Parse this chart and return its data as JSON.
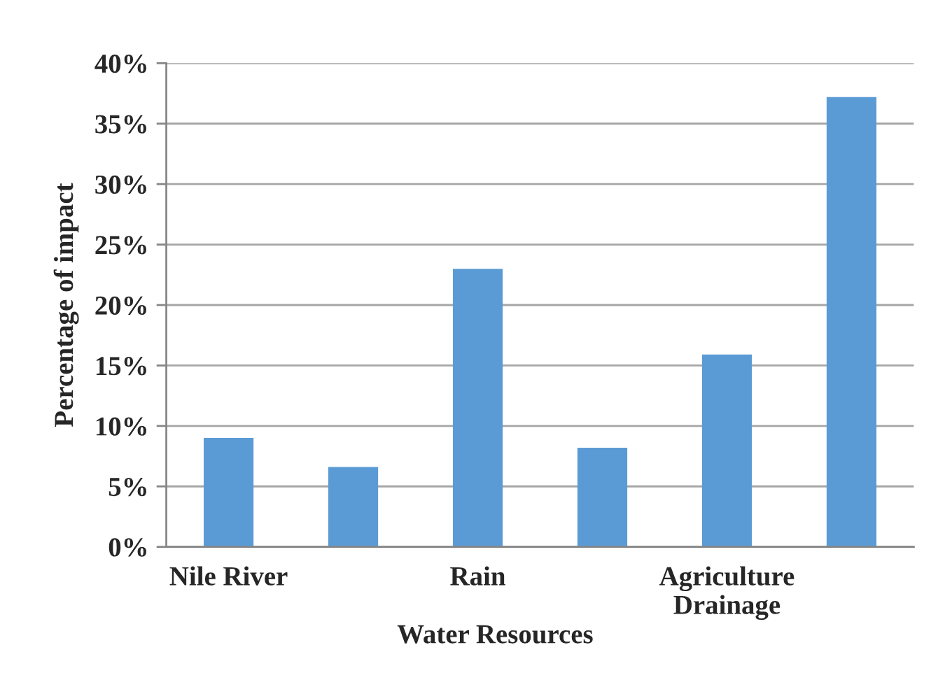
{
  "chart_data": {
    "type": "bar",
    "xlabel": "Water Resources",
    "ylabel": "Percentage of impact",
    "categories": [
      "Nile River",
      null,
      "Rain",
      null,
      "Agriculture\nDrainage",
      null
    ],
    "values": [
      9.0,
      6.6,
      23.0,
      8.2,
      15.9,
      37.2
    ],
    "color": "#5b9bd5",
    "ylim": [
      0,
      40
    ],
    "yticks": [
      {
        "value": 0,
        "label": "0%"
      },
      {
        "value": 5,
        "label": "5%"
      },
      {
        "value": 10,
        "label": "10%"
      },
      {
        "value": 15,
        "label": "15%"
      },
      {
        "value": 20,
        "label": "20%"
      },
      {
        "value": 25,
        "label": "25%"
      },
      {
        "value": 30,
        "label": "30%"
      },
      {
        "value": 35,
        "label": "35%"
      },
      {
        "value": 40,
        "label": "40%"
      }
    ],
    "grid": "y"
  }
}
